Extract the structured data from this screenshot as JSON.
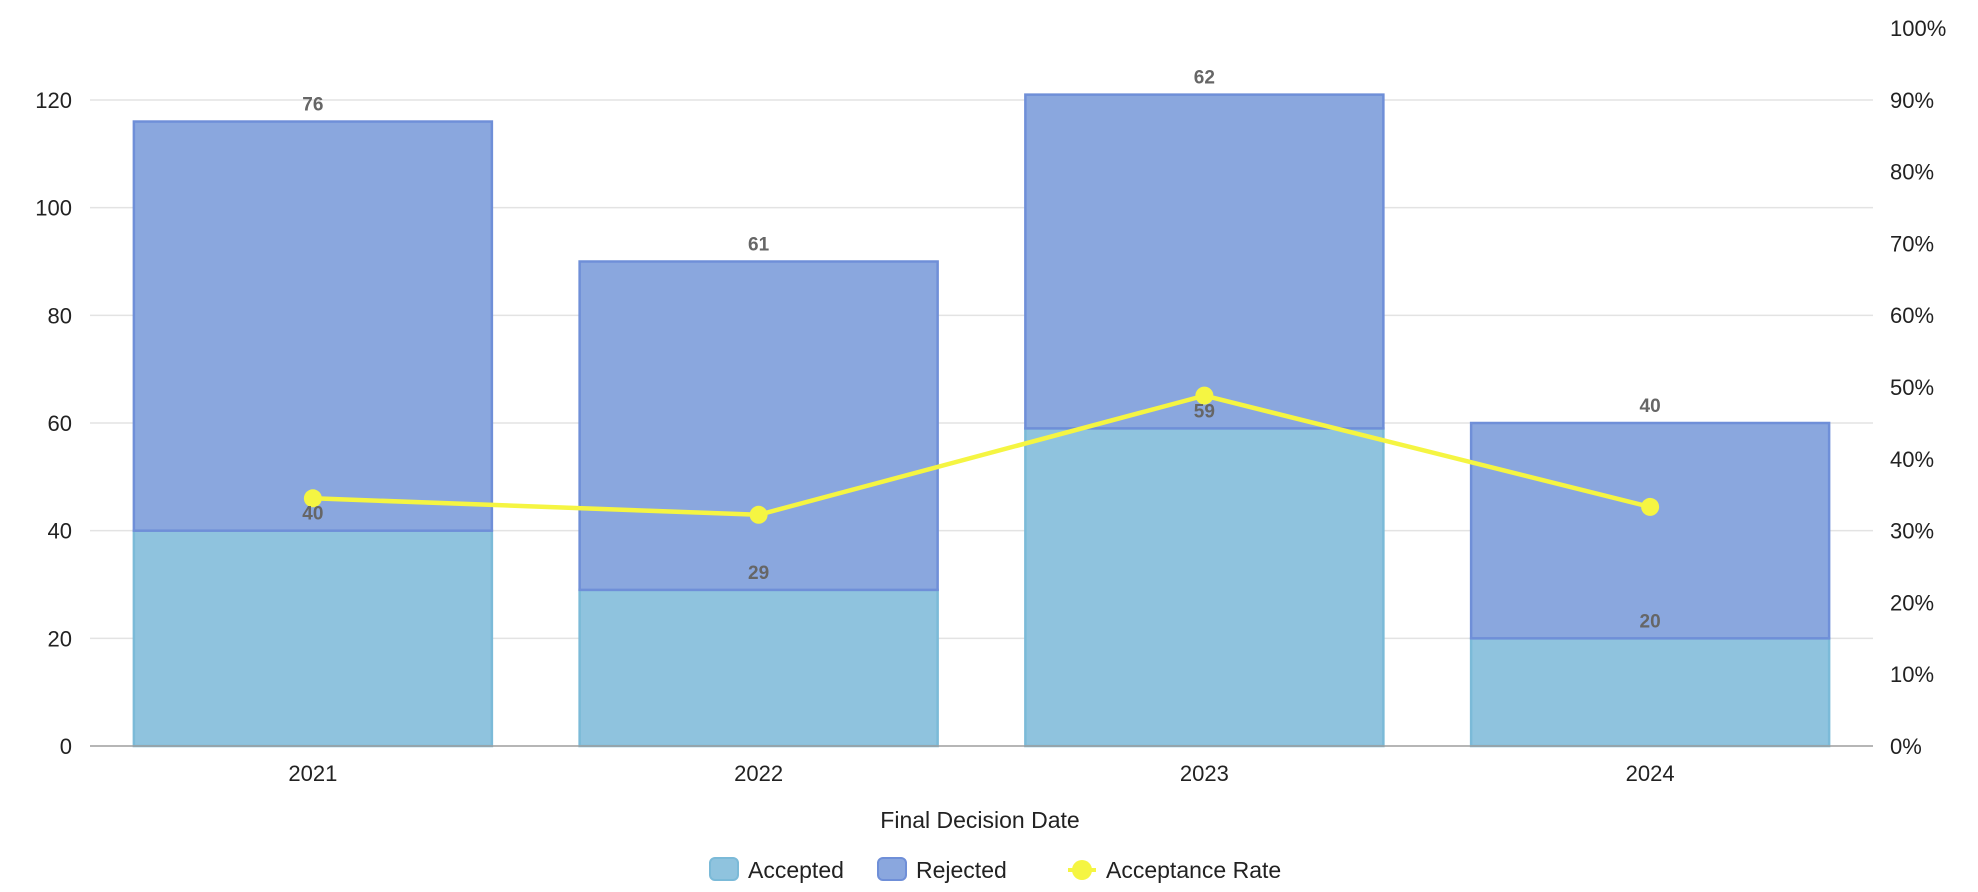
{
  "chart_data": {
    "type": "bar",
    "stacked": true,
    "categories": [
      "2021",
      "2022",
      "2023",
      "2024"
    ],
    "series": [
      {
        "name": "Accepted",
        "type": "bar",
        "axis": "left",
        "values": [
          40,
          29,
          59,
          20
        ],
        "color": "#8fc3de",
        "stroke": "#7bbad8"
      },
      {
        "name": "Rejected",
        "type": "bar",
        "axis": "left",
        "values": [
          76,
          61,
          62,
          40
        ],
        "color": "#8aa7de",
        "stroke": "#6f8fd8"
      },
      {
        "name": "Acceptance Rate",
        "type": "line",
        "axis": "right",
        "values": [
          0.345,
          0.322,
          0.488,
          0.333
        ],
        "color": "#f5f542"
      }
    ],
    "xlabel": "Final Decision Date",
    "ylabel": "",
    "ylim": [
      0,
      120
    ],
    "yticks": [
      "0",
      "20",
      "40",
      "60",
      "80",
      "100",
      "120"
    ],
    "y2lim": [
      0,
      1
    ],
    "y2ticks": [
      "0%",
      "10%",
      "20%",
      "30%",
      "40%",
      "50%",
      "60%",
      "70%",
      "80%",
      "90%",
      "100%"
    ],
    "grid": true,
    "legend": "bottom-center"
  }
}
